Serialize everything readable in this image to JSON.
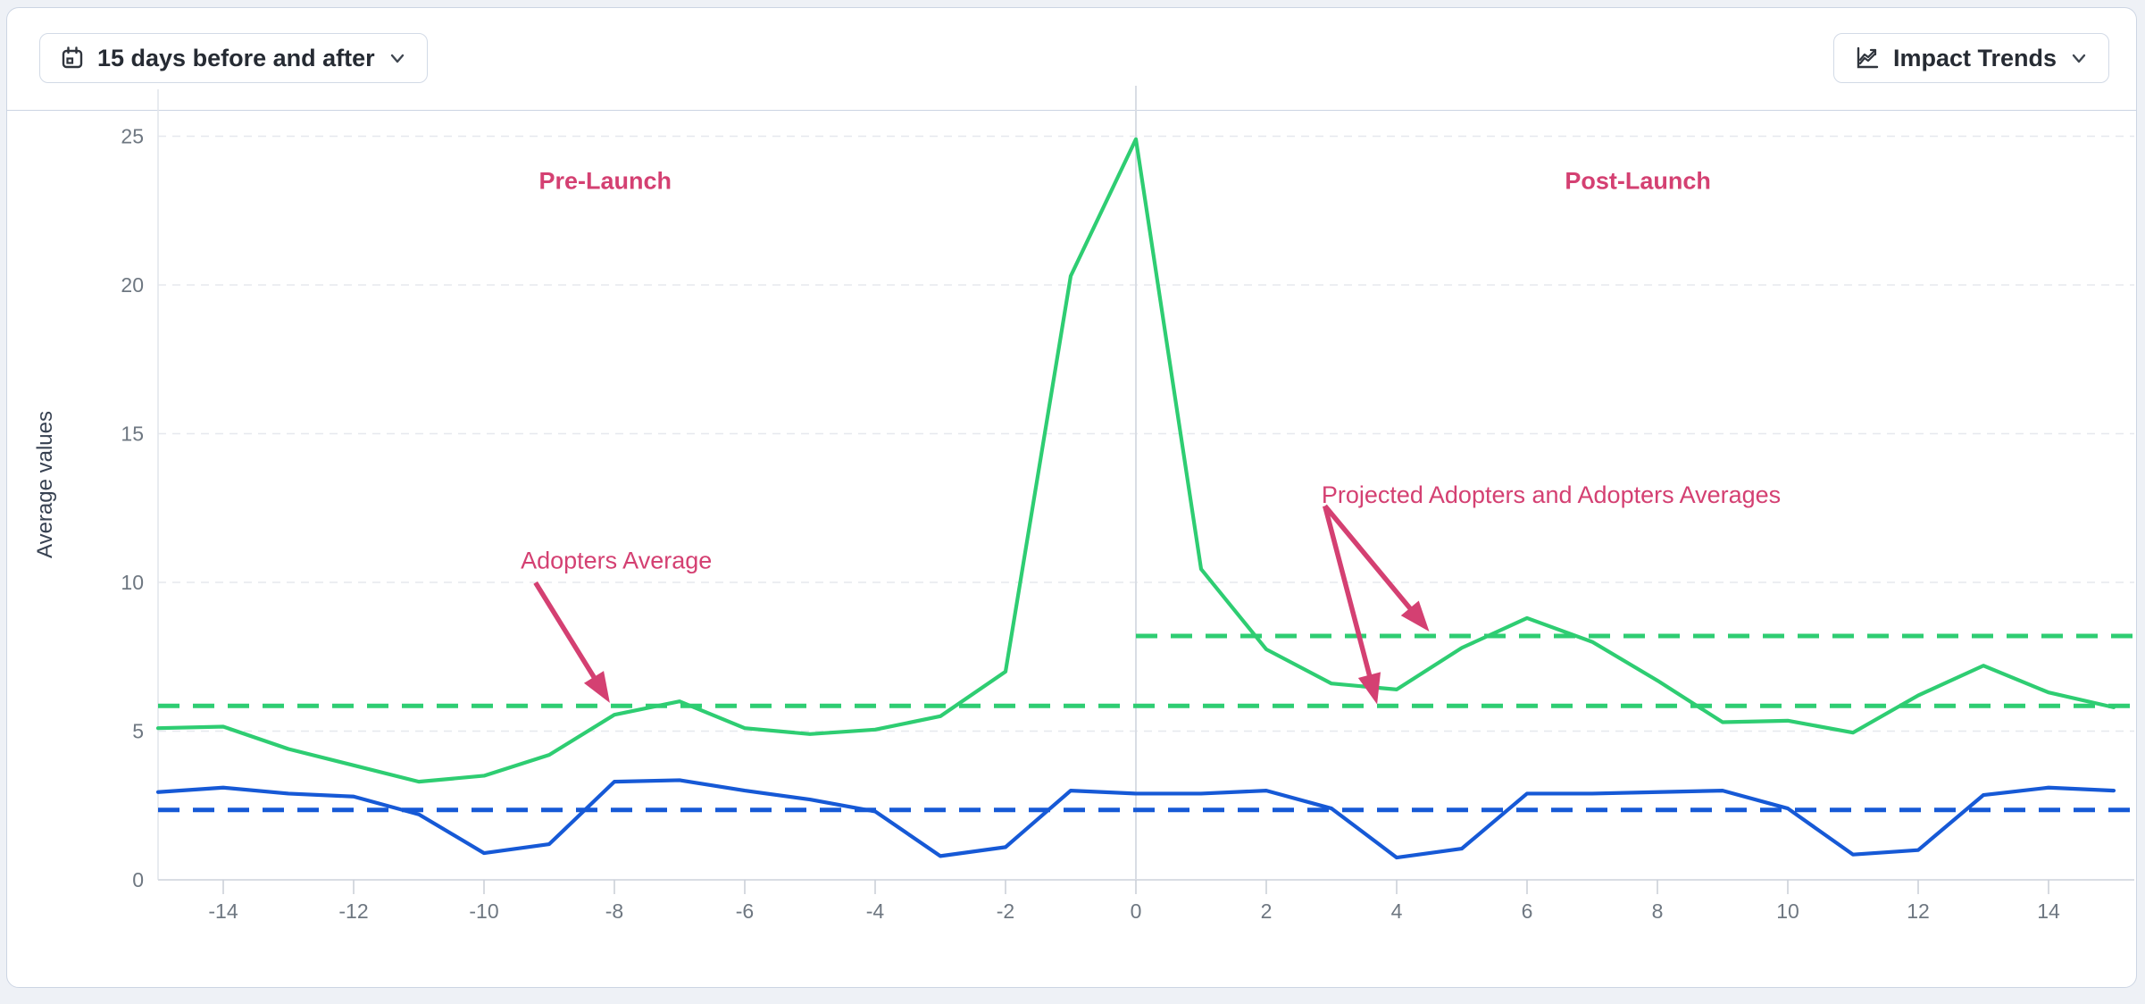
{
  "toolbar": {
    "date_range_label": "15 days before and after",
    "trends_label": "Impact Trends"
  },
  "chart_data": {
    "type": "line",
    "ylabel": "Average values",
    "xlabel": "",
    "title": "",
    "x_range": [
      -15,
      15
    ],
    "ylim": [
      0,
      25
    ],
    "grid": true,
    "legend": "none",
    "x_ticks": [
      -14,
      -12,
      -10,
      -8,
      -6,
      -4,
      -2,
      0,
      2,
      4,
      6,
      8,
      10,
      12,
      14
    ],
    "y_ticks": [
      0,
      5,
      10,
      15,
      20,
      25
    ],
    "launch_marker_x": 0,
    "x_start": -15,
    "x_step": 1,
    "series": [
      {
        "id": "adopters-line",
        "color": "#2ecd72",
        "style": "solid",
        "values": [
          5.1,
          5.15,
          4.4,
          3.85,
          3.3,
          3.5,
          4.2,
          5.55,
          6.0,
          5.1,
          4.9,
          5.05,
          5.5,
          7.0,
          20.3,
          24.9,
          10.45,
          7.75,
          6.6,
          6.4,
          7.8,
          8.8,
          8.0,
          6.7,
          5.3,
          5.35,
          4.95,
          6.2,
          7.2,
          6.3,
          5.8
        ]
      },
      {
        "id": "comparison-line",
        "color": "#1659d6",
        "style": "solid",
        "values": [
          2.95,
          3.1,
          2.9,
          2.8,
          2.2,
          0.9,
          1.2,
          3.3,
          3.35,
          3.0,
          2.7,
          2.3,
          0.8,
          1.1,
          3.0,
          2.9,
          2.9,
          3.0,
          2.4,
          0.75,
          1.05,
          2.9,
          2.9,
          2.95,
          3.0,
          2.4,
          0.85,
          1.0,
          2.85,
          3.1,
          3.0
        ]
      }
    ],
    "reference_lines": [
      {
        "id": "adopters-average",
        "color": "#2ecd72",
        "value": 5.85,
        "x_start": -15,
        "x_end": 15.3
      },
      {
        "id": "projected-adopters-average",
        "color": "#2ecd72",
        "value": 8.2,
        "x_start": 0,
        "x_end": 15.3
      },
      {
        "id": "comparison-average",
        "color": "#1659d6",
        "value": 2.35,
        "x_start": -15,
        "x_end": 15.3
      }
    ],
    "annotations": [
      {
        "id": "pre-launch-label",
        "text": "Pre-Launch",
        "x": -8.14,
        "y": 23.5,
        "bold": true,
        "arrows": []
      },
      {
        "id": "post-launch-label",
        "text": "Post-Launch",
        "x": 7.7,
        "y": 23.5,
        "bold": true,
        "arrows": []
      },
      {
        "id": "adopters-average-label",
        "text": "Adopters Average",
        "x": -7.97,
        "y": 10.74,
        "bold": false,
        "arrows": [
          {
            "from": [
              -9.21,
              9.99
            ],
            "to": [
              -8.07,
              5.95
            ]
          }
        ]
      },
      {
        "id": "projected-averages-label",
        "text": "Projected Adopters and Adopters Averages",
        "x": 6.37,
        "y": 12.94,
        "bold": false,
        "arrows": [
          {
            "from": [
              2.9,
              12.57
            ],
            "to": [
              4.5,
              8.35
            ]
          },
          {
            "from": [
              2.9,
              12.57
            ],
            "to": [
              3.7,
              5.9
            ]
          }
        ]
      }
    ],
    "annotation_color": "#d44072"
  }
}
